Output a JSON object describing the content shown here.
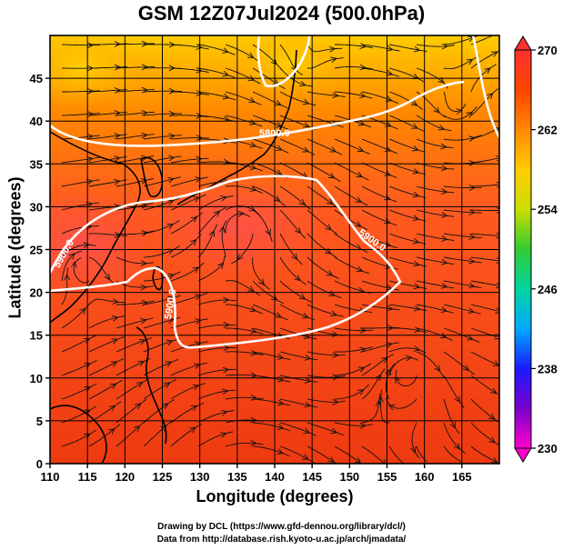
{
  "title": "GSM 12Z07Jul2024 (500.0hPa)",
  "xaxis": {
    "label": "Longitude (degrees)",
    "range": [
      110,
      170
    ],
    "ticks": [
      "110",
      "115",
      "120",
      "125",
      "130",
      "135",
      "140",
      "145",
      "150",
      "155",
      "160",
      "165"
    ]
  },
  "yaxis": {
    "label": "Latitude  (degrees)",
    "range": [
      0,
      50
    ],
    "ticks": [
      "0",
      "5",
      "10",
      "15",
      "20",
      "25",
      "30",
      "35",
      "40",
      "45"
    ]
  },
  "colorbar": {
    "ticks": [
      "230",
      "238",
      "246",
      "254",
      "262",
      "270"
    ],
    "stops": [
      "#ff00cc",
      "#7a00cc",
      "#1a1aff",
      "#00aaff",
      "#00d4a0",
      "#33cc33",
      "#ccdd00",
      "#ffcc00",
      "#ff8800",
      "#ff4400",
      "#ff3030"
    ]
  },
  "contours": [
    {
      "label": "5800.0"
    },
    {
      "label": "5900.0"
    },
    {
      "label": "5900.0"
    },
    {
      "label": "5900.0"
    }
  ],
  "credits": [
    "Drawing by DCL (https://www.gfd-dennou.org/library/dcl/)",
    "Data from http://database.rish.kyoto-u.ac.jp/arch/jmadata/"
  ]
}
